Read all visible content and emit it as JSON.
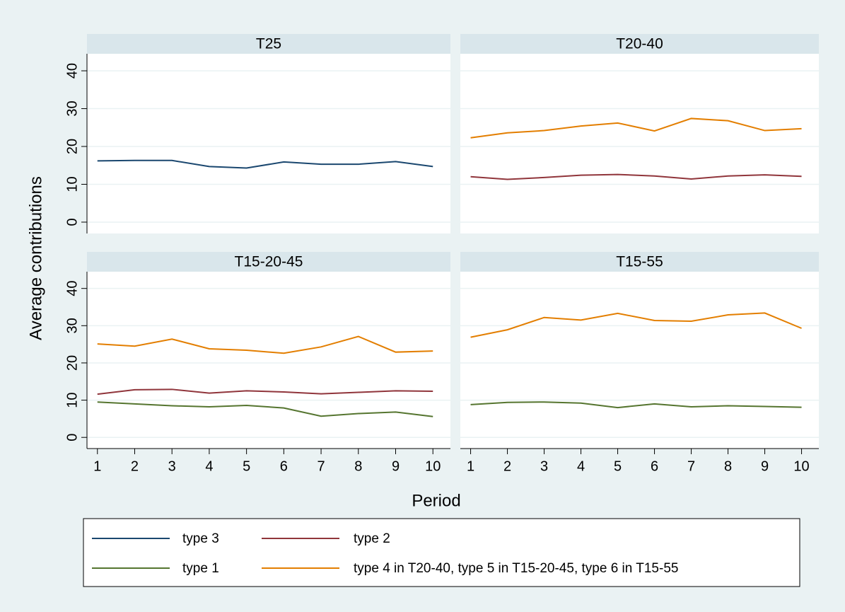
{
  "y_label": "Average contributions",
  "x_label": "Period",
  "chart_data": [
    {
      "type": "line",
      "title": "T25",
      "x": [
        1,
        2,
        3,
        4,
        5,
        6,
        7,
        8,
        9,
        10
      ],
      "xlim": [
        0.72,
        10.47
      ],
      "ylim": [
        -3,
        44.5
      ],
      "yticks": [
        0,
        10,
        20,
        30,
        40
      ],
      "grid": true,
      "series": [
        {
          "name": "type 3",
          "color": "#1a476f",
          "values": [
            16.2,
            16.3,
            16.3,
            14.7,
            14.3,
            15.9,
            15.3,
            15.3,
            16.0,
            14.7
          ]
        }
      ]
    },
    {
      "type": "line",
      "title": "T20-40",
      "x": [
        1,
        2,
        3,
        4,
        5,
        6,
        7,
        8,
        9,
        10
      ],
      "xlim": [
        0.72,
        10.47
      ],
      "ylim": [
        -3,
        44.5
      ],
      "yticks": [
        0,
        10,
        20,
        30,
        40
      ],
      "grid": true,
      "series": [
        {
          "name": "type 4 in T20-40, type 5 in T15-20-45, type 6 in T15-55",
          "color": "#e37e00",
          "values": [
            22.3,
            23.6,
            24.2,
            25.4,
            26.2,
            24.1,
            27.4,
            26.8,
            24.2,
            24.7
          ]
        },
        {
          "name": "type 2",
          "color": "#90353b",
          "values": [
            12.0,
            11.3,
            11.8,
            12.4,
            12.6,
            12.2,
            11.4,
            12.2,
            12.5,
            12.1
          ]
        }
      ]
    },
    {
      "type": "line",
      "title": "T15-20-45",
      "x": [
        1,
        2,
        3,
        4,
        5,
        6,
        7,
        8,
        9,
        10
      ],
      "xlim": [
        0.72,
        10.47
      ],
      "xticks": [
        1,
        2,
        3,
        4,
        5,
        6,
        7,
        8,
        9,
        10
      ],
      "ylim": [
        -3,
        44.5
      ],
      "yticks": [
        0,
        10,
        20,
        30,
        40
      ],
      "grid": true,
      "series": [
        {
          "name": "type 4 in T20-40, type 5 in T15-20-45, type 6 in T15-55",
          "color": "#e37e00",
          "values": [
            25.1,
            24.5,
            26.4,
            23.8,
            23.4,
            22.6,
            24.3,
            27.1,
            22.9,
            23.2
          ]
        },
        {
          "name": "type 2",
          "color": "#90353b",
          "values": [
            11.6,
            12.8,
            12.9,
            11.9,
            12.5,
            12.2,
            11.7,
            12.1,
            12.5,
            12.4
          ]
        },
        {
          "name": "type 1",
          "color": "#55752f",
          "values": [
            9.5,
            9.0,
            8.5,
            8.2,
            8.6,
            7.9,
            5.7,
            6.4,
            6.8,
            5.6
          ]
        }
      ]
    },
    {
      "type": "line",
      "title": "T15-55",
      "x": [
        1,
        2,
        3,
        4,
        5,
        6,
        7,
        8,
        9,
        10
      ],
      "xlim": [
        0.72,
        10.47
      ],
      "xticks": [
        1,
        2,
        3,
        4,
        5,
        6,
        7,
        8,
        9,
        10
      ],
      "ylim": [
        -3,
        44.5
      ],
      "yticks": [
        0,
        10,
        20,
        30,
        40
      ],
      "grid": true,
      "series": [
        {
          "name": "type 4 in T20-40, type 5 in T15-20-45, type 6 in T15-55",
          "color": "#e37e00",
          "values": [
            26.9,
            28.9,
            32.2,
            31.5,
            33.3,
            31.4,
            31.2,
            32.9,
            33.4,
            29.3
          ]
        },
        {
          "name": "type 1",
          "color": "#55752f",
          "values": [
            8.8,
            9.4,
            9.5,
            9.2,
            8.0,
            9.0,
            8.2,
            8.5,
            8.3,
            8.1
          ]
        }
      ]
    }
  ]
}
